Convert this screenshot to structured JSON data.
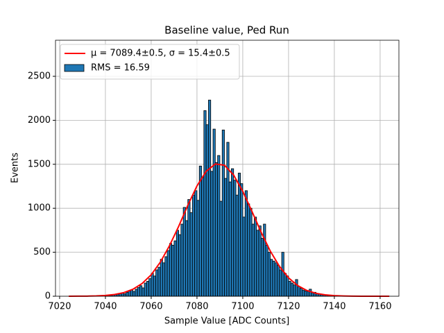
{
  "chart_data": {
    "type": "histogram",
    "title": "Baseline value, Ped Run",
    "xlabel": "Sample Value [ADC Counts]",
    "ylabel": "Events",
    "bins": [
      7040,
      7041,
      7042,
      7043,
      7044,
      7045,
      7046,
      7047,
      7048,
      7049,
      7050,
      7051,
      7052,
      7053,
      7054,
      7055,
      7056,
      7057,
      7058,
      7059,
      7060,
      7061,
      7062,
      7063,
      7064,
      7065,
      7066,
      7067,
      7068,
      7069,
      7070,
      7071,
      7072,
      7073,
      7074,
      7075,
      7076,
      7077,
      7078,
      7079,
      7080,
      7081,
      7082,
      7083,
      7084,
      7085,
      7086,
      7087,
      7088,
      7089,
      7090,
      7091,
      7092,
      7093,
      7094,
      7095,
      7096,
      7097,
      7098,
      7099,
      7100,
      7101,
      7102,
      7103,
      7104,
      7105,
      7106,
      7107,
      7108,
      7109,
      7110,
      7111,
      7112,
      7113,
      7114,
      7115,
      7116,
      7117,
      7118,
      7119,
      7120,
      7121,
      7122,
      7123,
      7124,
      7125,
      7126,
      7127,
      7128,
      7129,
      7130,
      7131,
      7132,
      7133,
      7134,
      7135,
      7136,
      7137,
      7138,
      7139,
      7140,
      7141
    ],
    "series": [
      {
        "name": "RMS = 16.59",
        "color": "#1f77b4",
        "edgecolor": "#000000",
        "values": [
          8,
          12,
          10,
          15,
          18,
          22,
          30,
          35,
          28,
          45,
          60,
          70,
          55,
          80,
          100,
          120,
          95,
          150,
          170,
          200,
          260,
          230,
          300,
          330,
          420,
          380,
          450,
          520,
          600,
          580,
          630,
          750,
          700,
          820,
          1010,
          860,
          1100,
          950,
          1150,
          1200,
          1090,
          1480,
          1350,
          2110,
          1950,
          2230,
          1420,
          1900,
          1520,
          1600,
          1080,
          1890,
          1340,
          1750,
          1300,
          1450,
          1320,
          1150,
          1400,
          1280,
          900,
          1200,
          1050,
          1000,
          820,
          900,
          750,
          800,
          660,
          820,
          580,
          500,
          420,
          400,
          380,
          350,
          300,
          500,
          260,
          230,
          170,
          150,
          130,
          190,
          110,
          90,
          70,
          60,
          55,
          80,
          40,
          45,
          30,
          25,
          18,
          20,
          12,
          8,
          10,
          6,
          5
        ]
      },
      {
        "name": "μ = 7089.4±0.5, σ = 15.4±0.5",
        "type": "line",
        "color": "#ff0000",
        "x": [
          7024,
          7028,
          7032,
          7036,
          7040,
          7044,
          7048,
          7052,
          7056,
          7060,
          7064,
          7068,
          7072,
          7076,
          7080,
          7084,
          7088,
          7092,
          7096,
          7100,
          7104,
          7108,
          7112,
          7116,
          7120,
          7124,
          7128,
          7132,
          7136,
          7140,
          7144,
          7148,
          7152,
          7156,
          7160,
          7164
        ],
        "values": [
          0,
          0.5,
          1.4,
          3.7,
          8.8,
          19.5,
          41,
          79,
          144,
          244,
          388,
          575,
          794,
          1034,
          1254,
          1420,
          1504,
          1489,
          1378,
          1192,
          965,
          729,
          514,
          340,
          209,
          121,
          65,
          33,
          15.5,
          6.8,
          2.8,
          1.1,
          0.4,
          0.1,
          0,
          0
        ]
      }
    ],
    "xlim": [
      7018.2,
      7168.2
    ],
    "ylim": [
      0,
      2910
    ],
    "xticks": [
      7020,
      7040,
      7060,
      7080,
      7100,
      7120,
      7140,
      7160
    ],
    "yticks": [
      0,
      500,
      1000,
      1500,
      2000,
      2500
    ],
    "grid": true,
    "legend": "upper left"
  }
}
